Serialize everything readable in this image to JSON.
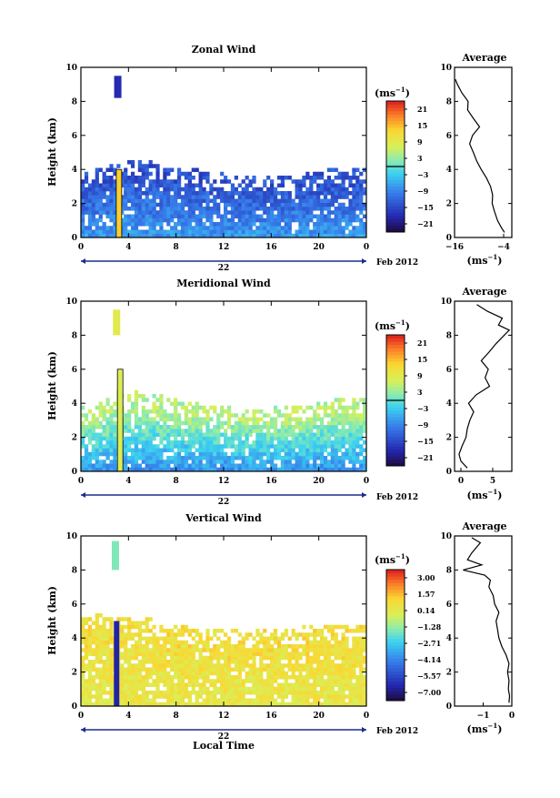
{
  "chart_data": [
    {
      "type": "heatmap",
      "title": "Zonal Wind",
      "ylabel": "Height (km)",
      "xlabel": "",
      "xlim": [
        0,
        24
      ],
      "ylim": [
        0,
        10
      ],
      "x_ticks": [
        "0",
        "4",
        "8",
        "12",
        "16",
        "20",
        "0"
      ],
      "y_ticks": [
        "0",
        "2",
        "4",
        "6",
        "8",
        "10"
      ],
      "day_label": "22",
      "date_label": "Feb 2012",
      "colorbar": {
        "unit_base": "(ms",
        "unit_exp": "−1",
        "unit_close": ")",
        "ticks": [
          "21",
          "15",
          "9",
          "3",
          "−3",
          "−9",
          "−15",
          "−21"
        ],
        "range": [
          -24,
          24
        ],
        "zero_contour": 0
      },
      "field": {
        "echo_top_km": [
          3.8,
          4.0,
          4.3,
          4.6,
          4.5,
          4.4,
          4.3,
          4.1,
          4.0,
          3.9,
          3.8,
          3.7,
          3.6,
          3.5,
          3.5,
          3.5,
          3.6,
          3.6,
          3.7,
          3.8,
          3.9,
          3.9,
          4.0,
          4.1,
          4.1
        ],
        "surface_value": -7,
        "aloft_value": -14,
        "spike": {
          "x": 3.2,
          "top_km": 4.0,
          "value": 14
        },
        "plume": {
          "x": 3.1,
          "from_km": 8.2,
          "to_km": 9.5,
          "value": -18
        }
      },
      "profile": {
        "title": "Average",
        "xlabel_base": "(ms",
        "xlabel_exp": "−1",
        "xlabel_close": ")",
        "xlim": [
          -16,
          -2
        ],
        "x_ticks": [
          "−16",
          "−4"
        ],
        "x_tick_values": [
          -16,
          -4
        ],
        "y_ticks": [
          "0",
          "2",
          "4",
          "6",
          "8",
          "10"
        ],
        "heights_km": [
          0.3,
          0.6,
          1.0,
          1.5,
          2.0,
          2.5,
          3.0,
          3.5,
          4.0,
          4.5,
          5.0,
          5.5,
          6.0,
          6.5,
          7.0,
          7.5,
          8.0,
          8.5,
          9.0,
          9.3
        ],
        "values": [
          -3.8,
          -4.6,
          -5.5,
          -6.2,
          -6.8,
          -6.7,
          -7.2,
          -8.2,
          -9.5,
          -10.6,
          -11.4,
          -12.3,
          -11.6,
          -9.9,
          -11.4,
          -12.8,
          -12.7,
          -14.2,
          -15.3,
          -15.8
        ]
      }
    },
    {
      "type": "heatmap",
      "title": "Meridional Wind",
      "ylabel": "Height (km)",
      "xlabel": "",
      "xlim": [
        0,
        24
      ],
      "ylim": [
        0,
        10
      ],
      "x_ticks": [
        "0",
        "4",
        "8",
        "12",
        "16",
        "20",
        "0"
      ],
      "y_ticks": [
        "0",
        "2",
        "4",
        "6",
        "8",
        "10"
      ],
      "day_label": "22",
      "date_label": "Feb 2012",
      "colorbar": {
        "unit_base": "(ms",
        "unit_exp": "−1",
        "unit_close": ")",
        "ticks": [
          "21",
          "15",
          "9",
          "3",
          "−3",
          "−9",
          "−15",
          "−21"
        ],
        "range": [
          -24,
          24
        ],
        "zero_contour": 0
      },
      "field": {
        "echo_top_km": [
          3.7,
          3.9,
          4.2,
          4.6,
          4.6,
          4.5,
          4.4,
          4.3,
          4.1,
          4.0,
          3.9,
          3.8,
          3.7,
          3.6,
          3.6,
          3.6,
          3.7,
          3.7,
          3.8,
          3.9,
          4.0,
          4.1,
          4.1,
          4.2,
          4.2
        ],
        "surface_value": -8,
        "aloft_value": 5,
        "spike": {
          "x": 3.3,
          "top_km": 6.0,
          "value": 8
        },
        "plume": {
          "x": 3.0,
          "from_km": 8.0,
          "to_km": 9.5,
          "value": 9
        }
      },
      "profile": {
        "title": "Average",
        "xlabel_base": "(ms",
        "xlabel_exp": "−1",
        "xlabel_close": ")",
        "xlim": [
          -1,
          8
        ],
        "x_ticks": [
          "0",
          "5"
        ],
        "x_tick_values": [
          0,
          5
        ],
        "y_ticks": [
          "0",
          "2",
          "4",
          "6",
          "8",
          "10"
        ],
        "heights_km": [
          0.2,
          0.6,
          1.0,
          1.5,
          2.0,
          2.5,
          3.0,
          3.5,
          4.0,
          4.5,
          5.0,
          5.5,
          6.0,
          6.5,
          7.0,
          7.5,
          8.0,
          8.3,
          8.6,
          9.0,
          9.4,
          9.8
        ],
        "values": [
          1.0,
          0.0,
          -0.3,
          0.2,
          0.8,
          1.0,
          1.4,
          2.0,
          1.2,
          2.4,
          4.5,
          3.8,
          4.3,
          3.2,
          4.4,
          5.5,
          6.8,
          7.6,
          5.9,
          6.5,
          4.2,
          2.5
        ]
      }
    },
    {
      "type": "heatmap",
      "title": "Vertical Wind",
      "ylabel": "Height (km)",
      "xlabel": "Local Time",
      "xlim": [
        0,
        24
      ],
      "ylim": [
        0,
        10
      ],
      "x_ticks": [
        "0",
        "4",
        "8",
        "12",
        "16",
        "20",
        "0"
      ],
      "y_ticks": [
        "0",
        "2",
        "4",
        "6",
        "8",
        "10"
      ],
      "day_label": "22",
      "date_label": "Feb 2012",
      "colorbar": {
        "unit_base": "(ms",
        "unit_exp": "−1",
        "unit_close": ")",
        "ticks": [
          "3.00",
          "1.57",
          "0.14",
          "−1.28",
          "−2.71",
          "−4.14",
          "−5.57",
          "−7.00"
        ],
        "range": [
          -7.7,
          3.7
        ],
        "zero_contour": null
      },
      "field": {
        "echo_top_km": [
          5.3,
          5.3,
          5.2,
          5.2,
          5.1,
          5.0,
          4.8,
          4.7,
          4.6,
          4.5,
          4.5,
          4.4,
          4.4,
          4.4,
          4.4,
          4.4,
          4.5,
          4.5,
          4.5,
          4.6,
          4.6,
          4.7,
          4.7,
          4.7,
          4.8
        ],
        "surface_value": 0.3,
        "aloft_value": 0.8,
        "spike": {
          "x": 3.0,
          "top_km": 5.0,
          "value": -6.5
        },
        "plume": {
          "x": 2.9,
          "from_km": 8.0,
          "to_km": 9.7,
          "value": -1.6
        }
      },
      "profile": {
        "title": "Average",
        "xlabel_base": "(ms",
        "xlabel_exp": "−1",
        "xlabel_close": ")",
        "xlim": [
          -2,
          0
        ],
        "x_ticks": [
          "−1",
          "0"
        ],
        "x_tick_values": [
          -1,
          0
        ],
        "y_ticks": [
          "0",
          "2",
          "4",
          "6",
          "8",
          "10"
        ],
        "heights_km": [
          0.2,
          0.6,
          1.0,
          1.5,
          2.0,
          2.5,
          3.0,
          3.5,
          4.0,
          4.5,
          5.0,
          5.5,
          6.0,
          6.5,
          7.0,
          7.4,
          7.7,
          8.0,
          8.3,
          8.6,
          9.0,
          9.3,
          9.6,
          9.9
        ],
        "values": [
          -0.1,
          -0.08,
          -0.12,
          -0.1,
          -0.15,
          -0.1,
          -0.2,
          -0.35,
          -0.45,
          -0.5,
          -0.55,
          -0.45,
          -0.6,
          -0.65,
          -0.8,
          -0.75,
          -0.95,
          -1.7,
          -1.05,
          -1.55,
          -1.4,
          -1.25,
          -1.1,
          -1.4
        ]
      }
    }
  ]
}
